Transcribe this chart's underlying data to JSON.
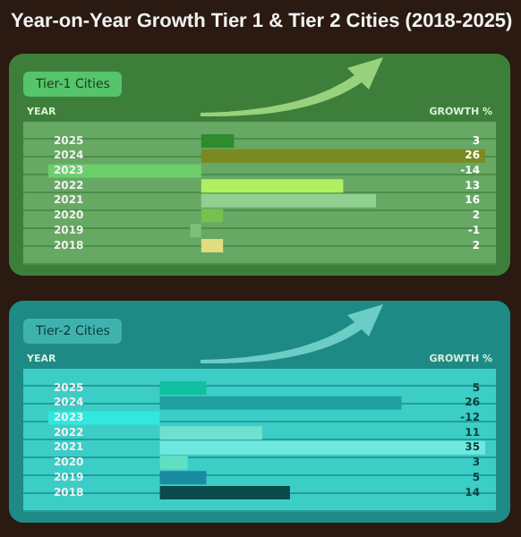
{
  "chart_data": [
    {
      "type": "bar",
      "orientation": "horizontal",
      "title": "Year-on-Year Growth Tier 1 & Tier 2 Cities (2018-2025)",
      "subtitle": "Tier-1 Cities",
      "ylabel": "YEAR",
      "xlabel": "GROWTH %",
      "categories": [
        "2025",
        "2024",
        "2023",
        "2022",
        "2021",
        "2020",
        "2019",
        "2018"
      ],
      "values": [
        3,
        26,
        -14,
        13,
        16,
        2,
        -1,
        2
      ],
      "colors": [
        "#2e8b2e",
        "#7a8a20",
        "#6ccf6c",
        "#b0f060",
        "#90d090",
        "#78c050",
        "#7cc07c",
        "#e0dc80"
      ],
      "data_labels": true,
      "tick_labels": "y",
      "legend": false,
      "grid": false
    },
    {
      "type": "bar",
      "orientation": "horizontal",
      "title": "Tier-2 Cities",
      "ylabel": "YEAR",
      "xlabel": "GROWTH %",
      "categories": [
        "2025",
        "2024",
        "2023",
        "2022",
        "2021",
        "2020",
        "2019",
        "2018"
      ],
      "values": [
        5,
        26,
        -12,
        11,
        35,
        3,
        5,
        14
      ],
      "colors": [
        "#10c0a0",
        "#20a0a0",
        "#30e8e0",
        "#70e0d0",
        "#70e8e0",
        "#60e0c0",
        "#1a8aa0",
        "#0a4a4a"
      ],
      "data_labels": true,
      "tick_labels": "y",
      "legend": false,
      "grid": false
    }
  ]
}
